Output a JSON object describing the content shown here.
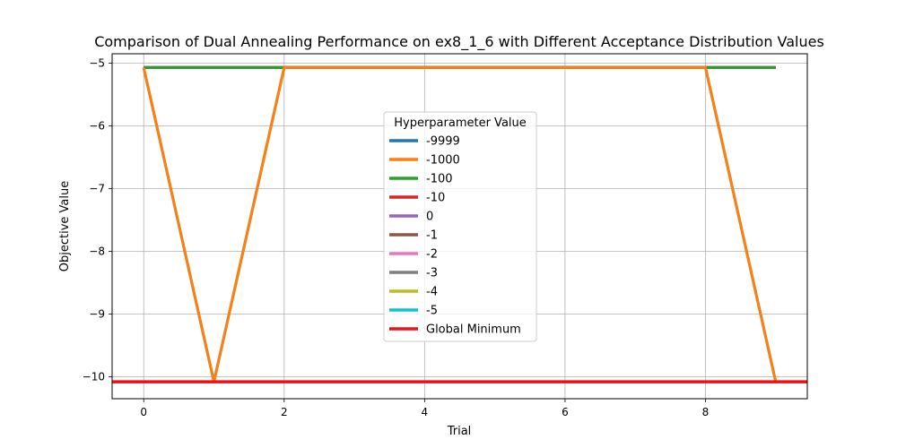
{
  "chart_data": {
    "type": "line",
    "title": "Comparison of Dual Annealing Performance on ex8_1_6 with Different Acceptance Distribution Values",
    "xlabel": "Trial",
    "ylabel": "Objective Value",
    "xlim": [
      -0.45,
      9.45
    ],
    "ylim": [
      -10.35,
      -4.85
    ],
    "xticks": [
      0,
      2,
      4,
      6,
      8
    ],
    "xtick_labels": [
      "0",
      "2",
      "4",
      "6",
      "8"
    ],
    "yticks": [
      -5,
      -6,
      -7,
      -8,
      -9,
      -10
    ],
    "ytick_labels": [
      "−5",
      "−6",
      "−7",
      "−8",
      "−9",
      "−10"
    ],
    "grid": true,
    "legend": {
      "title": "Hyperparameter Value",
      "placement": "center"
    },
    "x": [
      0,
      1,
      2,
      3,
      4,
      5,
      6,
      7,
      8,
      9
    ],
    "series": [
      {
        "name": "-9999",
        "color": "#1f77b4",
        "values": [
          -5.07,
          -10.08,
          -5.07,
          -5.07,
          -5.07,
          -5.07,
          -5.07,
          -5.07,
          -5.07,
          -10.08
        ]
      },
      {
        "name": "-1000",
        "color": "#ff7f0e",
        "values": [
          -5.07,
          -10.08,
          -5.07,
          -5.07,
          -5.07,
          -5.07,
          -5.07,
          -5.07,
          -5.07,
          -10.08
        ]
      },
      {
        "name": "-100",
        "color": "#2ca02c",
        "values": [
          -5.07,
          -5.07,
          -5.07,
          -5.07,
          -5.07,
          -5.07,
          -5.07,
          -5.07,
          -5.07,
          -5.07
        ]
      },
      {
        "name": "-10",
        "color": "#d62728",
        "values": [
          -5.07,
          -5.07,
          -5.07,
          -5.07,
          -5.07,
          -5.07,
          -5.07,
          -5.07,
          -5.07,
          -5.07
        ]
      },
      {
        "name": "0",
        "color": "#9467bd",
        "values": [
          -5.07,
          -5.07,
          -5.07,
          -5.07,
          -5.07,
          -5.07,
          -5.07,
          -5.07,
          -5.07,
          -5.07
        ]
      },
      {
        "name": "-1",
        "color": "#8c564b",
        "values": [
          -5.07,
          -5.07,
          -5.07,
          -5.07,
          -5.07,
          -5.07,
          -5.07,
          -5.07,
          -5.07,
          -5.07
        ]
      },
      {
        "name": "-2",
        "color": "#e377c2",
        "values": [
          -5.07,
          -5.07,
          -5.07,
          -5.07,
          -5.07,
          -5.07,
          -5.07,
          -5.07,
          -5.07,
          -5.07
        ]
      },
      {
        "name": "-3",
        "color": "#7f7f7f",
        "values": [
          -5.07,
          -5.07,
          -5.07,
          -5.07,
          -5.07,
          -5.07,
          -5.07,
          -5.07,
          -5.07,
          -5.07
        ]
      },
      {
        "name": "-4",
        "color": "#bcbd22",
        "values": [
          -5.07,
          -5.07,
          -5.07,
          -5.07,
          -5.07,
          -5.07,
          -5.07,
          -5.07,
          -5.07,
          -5.07
        ]
      },
      {
        "name": "-5",
        "color": "#17becf",
        "values": [
          -5.07,
          -5.07,
          -5.07,
          -5.07,
          -5.07,
          -5.07,
          -5.07,
          -5.07,
          -5.07,
          -5.07
        ]
      }
    ],
    "reference_line": {
      "name": "Global Minimum",
      "color": "#ee1111",
      "value": -10.08
    }
  }
}
